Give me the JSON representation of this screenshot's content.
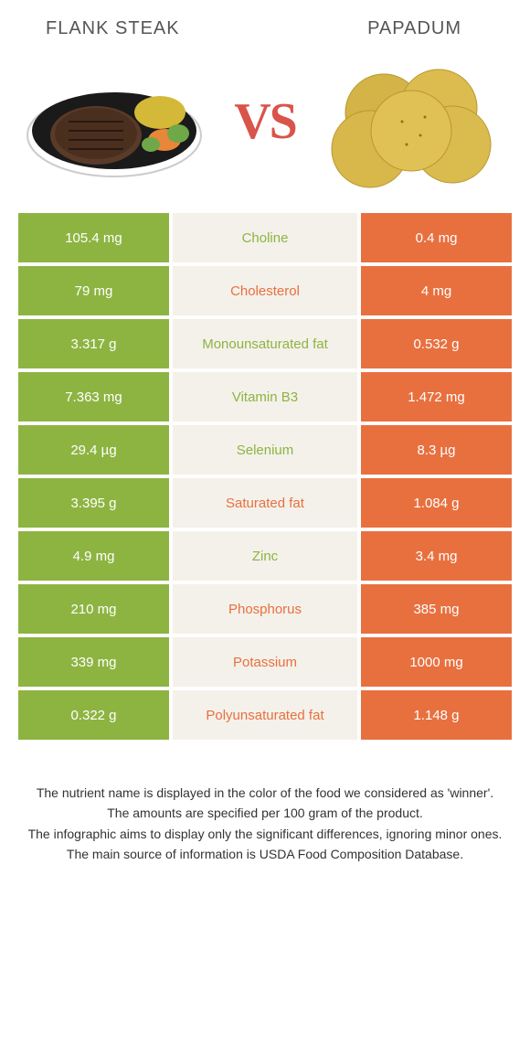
{
  "food1": {
    "name": "FLANK STEAK",
    "color": "#8db441"
  },
  "food2": {
    "name": "PAPADUM",
    "color": "#e8703f"
  },
  "vs_label": "VS",
  "rows": [
    {
      "left": "105.4 mg",
      "label": "Choline",
      "right": "0.4 mg",
      "winner": "green"
    },
    {
      "left": "79 mg",
      "label": "Cholesterol",
      "right": "4 mg",
      "winner": "orange"
    },
    {
      "left": "3.317 g",
      "label": "Monounsaturated fat",
      "right": "0.532 g",
      "winner": "green"
    },
    {
      "left": "7.363 mg",
      "label": "Vitamin B3",
      "right": "1.472 mg",
      "winner": "green"
    },
    {
      "left": "29.4 µg",
      "label": "Selenium",
      "right": "8.3 µg",
      "winner": "green"
    },
    {
      "left": "3.395 g",
      "label": "Saturated fat",
      "right": "1.084 g",
      "winner": "orange"
    },
    {
      "left": "4.9 mg",
      "label": "Zinc",
      "right": "3.4 mg",
      "winner": "green"
    },
    {
      "left": "210 mg",
      "label": "Phosphorus",
      "right": "385 mg",
      "winner": "orange"
    },
    {
      "left": "339 mg",
      "label": "Potassium",
      "right": "1000 mg",
      "winner": "orange"
    },
    {
      "left": "0.322 g",
      "label": "Polyunsaturated fat",
      "right": "1.148 g",
      "winner": "orange"
    }
  ],
  "footer": {
    "line1": "The nutrient name is displayed in the color of the food we considered as 'winner'.",
    "line2": "The amounts are specified per 100 gram of the product.",
    "line3": "The infographic aims to display only the significant differences, ignoring minor ones.",
    "line4": "The main source of information is USDA Food Composition Database."
  },
  "colors": {
    "green": "#8db441",
    "orange": "#e8703f",
    "mid_bg": "#f4f1ea",
    "vs": "#d9544a",
    "title": "#555555"
  }
}
